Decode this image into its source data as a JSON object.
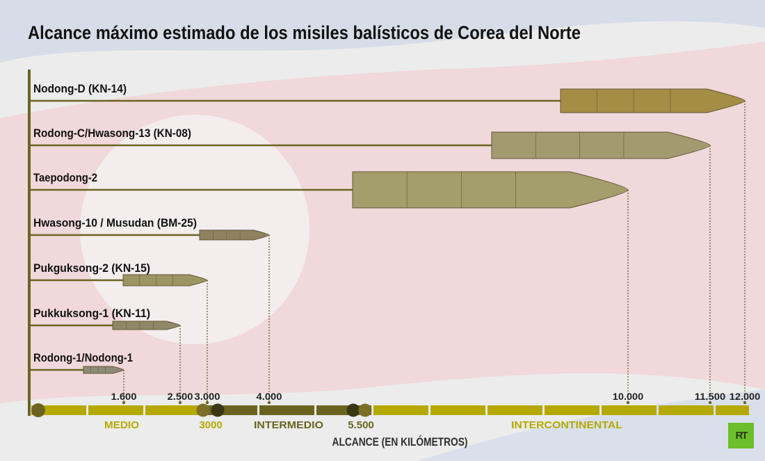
{
  "title": "Alcance máximo estimado de los misiles balísticos de Corea del Norte",
  "colors": {
    "line": "#6b6420",
    "medio": "#b5a900",
    "intermedio": "#6b6420",
    "dark_marker": "#3b3614",
    "mid_marker": "#7b6f27",
    "logo_green": "#6cbf2c"
  },
  "logo_text": "RT",
  "chart_data": {
    "type": "bar",
    "orientation": "horizontal",
    "title": "Alcance máximo estimado de los misiles balísticos de Corea del Norte",
    "xlabel": "ALCANCE (EN KILÓMETROS)",
    "xlim": [
      0,
      12000
    ],
    "grid": false,
    "categories": [
      "Nodong-D (KN-14)",
      "Rodong-C/Hwasong-13 (KN-08)",
      "Taepodong-2",
      "Hwasong-10 / Musudan (BM-25)",
      "Pukguksong-2 (KN-15)",
      "Pukkuksong-1 (KN-11)",
      "Rodong-1/Nodong-1"
    ],
    "values": [
      12000,
      11500,
      10000,
      4000,
      3000,
      2500,
      1600
    ],
    "value_labels": [
      "12.000",
      "11.500",
      "10.000",
      "4.000",
      "3.000",
      "2.500",
      "1.600"
    ],
    "range_bands": [
      {
        "label": "MEDIO",
        "from": 0,
        "to": 3000,
        "color": "#b5a900"
      },
      {
        "label": "INTERMEDIO",
        "from": 3000,
        "to": 5500,
        "color": "#6b6420"
      },
      {
        "label": "INTERCONTINENTAL",
        "from": 5500,
        "to": 12000,
        "color": "#b5a900"
      }
    ],
    "band_boundary_labels": [
      {
        "label": "3000",
        "value": 3000,
        "color": "#b5a900"
      },
      {
        "label": "5.500",
        "value": 5500,
        "color": "#6b6420"
      }
    ]
  }
}
